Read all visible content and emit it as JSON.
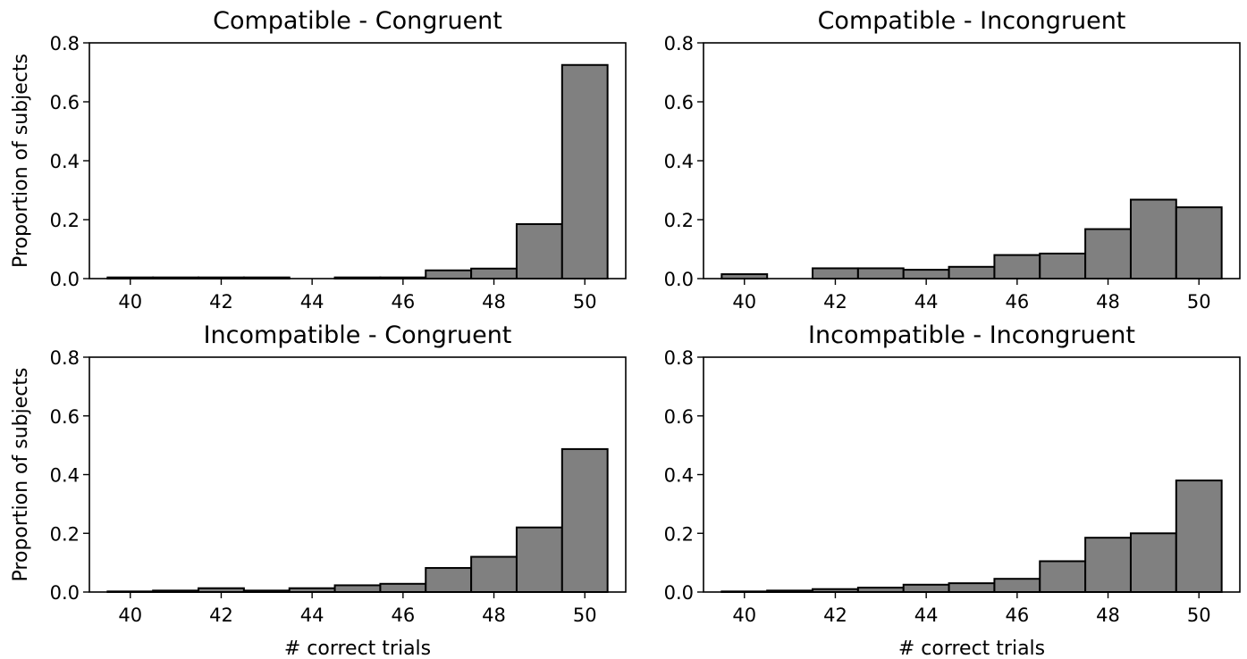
{
  "chart_data": [
    {
      "type": "bar",
      "title": "Compatible - Congruent",
      "xlabel": "",
      "ylabel": "Proportion of subjects",
      "x": [
        40,
        41,
        42,
        43,
        44,
        45,
        46,
        47,
        48,
        49,
        50
      ],
      "values": [
        0.004,
        0.004,
        0.004,
        0.004,
        0.0,
        0.004,
        0.004,
        0.028,
        0.034,
        0.185,
        0.725
      ],
      "xticks": [
        "40",
        "42",
        "44",
        "46",
        "48",
        "50"
      ],
      "yticks": [
        "0.0",
        "0.2",
        "0.4",
        "0.6",
        "0.8"
      ],
      "xlim": [
        39.1,
        50.9
      ],
      "ylim": [
        0,
        0.8
      ],
      "bar_color": "#808080",
      "edge_color": "#000000"
    },
    {
      "type": "bar",
      "title": "Compatible - Incongruent",
      "xlabel": "",
      "ylabel": "",
      "x": [
        40,
        41,
        42,
        43,
        44,
        45,
        46,
        47,
        48,
        49,
        50
      ],
      "values": [
        0.015,
        0.0,
        0.035,
        0.035,
        0.03,
        0.04,
        0.08,
        0.085,
        0.168,
        0.268,
        0.242
      ],
      "xticks": [
        "40",
        "42",
        "44",
        "46",
        "48",
        "50"
      ],
      "yticks": [
        "0.0",
        "0.2",
        "0.4",
        "0.6",
        "0.8"
      ],
      "xlim": [
        39.1,
        50.9
      ],
      "ylim": [
        0,
        0.8
      ],
      "bar_color": "#808080",
      "edge_color": "#000000"
    },
    {
      "type": "bar",
      "title": "Incompatible - Congruent",
      "xlabel": "# correct trials",
      "ylabel": "Proportion of subjects",
      "x": [
        40,
        41,
        42,
        43,
        44,
        45,
        46,
        47,
        48,
        49,
        50
      ],
      "values": [
        0.002,
        0.005,
        0.013,
        0.005,
        0.013,
        0.023,
        0.028,
        0.082,
        0.12,
        0.22,
        0.487
      ],
      "xticks": [
        "40",
        "42",
        "44",
        "46",
        "48",
        "50"
      ],
      "yticks": [
        "0.0",
        "0.2",
        "0.4",
        "0.6",
        "0.8"
      ],
      "xlim": [
        39.1,
        50.9
      ],
      "ylim": [
        0,
        0.8
      ],
      "bar_color": "#808080",
      "edge_color": "#000000"
    },
    {
      "type": "bar",
      "title": "Incompatible - Incongruent",
      "xlabel": "# correct trials",
      "ylabel": "",
      "x": [
        40,
        41,
        42,
        43,
        44,
        45,
        46,
        47,
        48,
        49,
        50
      ],
      "values": [
        0.002,
        0.005,
        0.01,
        0.015,
        0.025,
        0.03,
        0.045,
        0.105,
        0.185,
        0.2,
        0.38
      ],
      "xticks": [
        "40",
        "42",
        "44",
        "46",
        "48",
        "50"
      ],
      "yticks": [
        "0.0",
        "0.2",
        "0.4",
        "0.6",
        "0.8"
      ],
      "xlim": [
        39.1,
        50.9
      ],
      "ylim": [
        0,
        0.8
      ],
      "bar_color": "#808080",
      "edge_color": "#000000"
    }
  ]
}
